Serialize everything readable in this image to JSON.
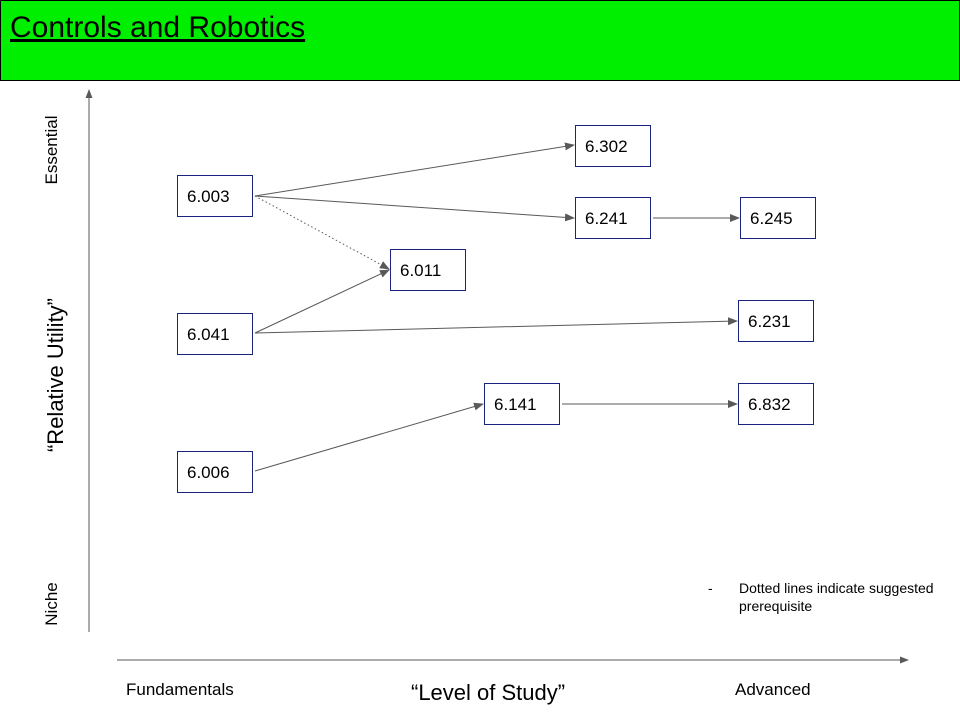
{
  "title": "Controls and Robotics",
  "y_axis": {
    "title": "“Relative Utility”",
    "top_label": "Essential",
    "bottom_label": "Niche"
  },
  "x_axis": {
    "title": "“Level of Study”",
    "left_label": "Fundamentals",
    "right_label": "Advanced"
  },
  "nodes": {
    "n6003": "6.003",
    "n6041": "6.041",
    "n6006": "6.006",
    "n6011": "6.011",
    "n6141": "6.141",
    "n6302": "6.302",
    "n6241": "6.241",
    "n6245": "6.245",
    "n6231": "6.231",
    "n6832": "6.832"
  },
  "edges": [
    {
      "from": "6.003",
      "to": "6.302",
      "style": "solid"
    },
    {
      "from": "6.003",
      "to": "6.241",
      "style": "solid"
    },
    {
      "from": "6.003",
      "to": "6.011",
      "style": "dotted"
    },
    {
      "from": "6.241",
      "to": "6.245",
      "style": "solid"
    },
    {
      "from": "6.041",
      "to": "6.011",
      "style": "solid"
    },
    {
      "from": "6.041",
      "to": "6.231",
      "style": "solid"
    },
    {
      "from": "6.006",
      "to": "6.141",
      "style": "solid"
    },
    {
      "from": "6.141",
      "to": "6.832",
      "style": "solid"
    }
  ],
  "note": {
    "bullet": "-",
    "text": "Dotted lines indicate suggested prerequisite"
  },
  "colors": {
    "header_bg": "#00ee00",
    "node_border": "#1a237e",
    "line": "#595959"
  }
}
